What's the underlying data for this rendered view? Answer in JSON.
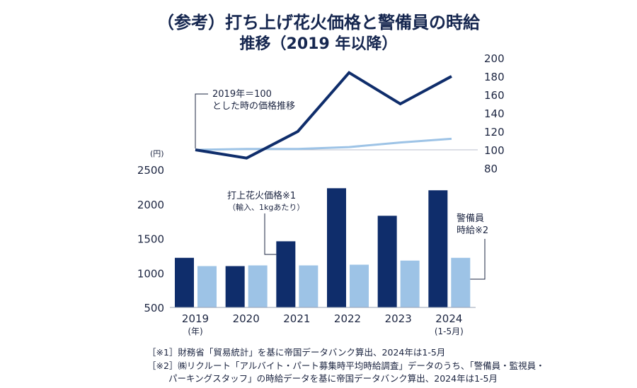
{
  "title": {
    "line1": "（参考）打ち上げ花火価格と警備員の時給",
    "line2": "推移（2019 年以降）"
  },
  "colors": {
    "dark_navy": "#0f2d6b",
    "light_blue": "#9dc3e6",
    "text": "#1b2440"
  },
  "chart_data": [
    {
      "type": "bar",
      "categories": [
        "2019\n(年)",
        "2020",
        "2021",
        "2022",
        "2023",
        "2024\n(1-5月)"
      ],
      "category_labels": [
        {
          "main": "2019",
          "sub": "(年)"
        },
        {
          "main": "2020",
          "sub": ""
        },
        {
          "main": "2021",
          "sub": ""
        },
        {
          "main": "2022",
          "sub": ""
        },
        {
          "main": "2023",
          "sub": ""
        },
        {
          "main": "2024",
          "sub": "(1-5月)"
        }
      ],
      "series": [
        {
          "name": "打上花火価格※1",
          "values": [
            1220,
            1100,
            1460,
            2230,
            1830,
            2200
          ],
          "color": "#0f2d6b"
        },
        {
          "name": "警備員時給※2",
          "values": [
            1100,
            1110,
            1110,
            1120,
            1180,
            1220
          ],
          "color": "#9dc3e6"
        }
      ],
      "ylim": [
        500,
        2500
      ],
      "yticks": [
        500,
        1000,
        1500,
        2000,
        2500
      ],
      "yunit": "(円)",
      "legend": {
        "fireworks_line1": "打上花火価格※1",
        "fireworks_line2": "（輸入、1kgあたり）",
        "guard_line1": "警備員",
        "guard_line2": "時給※2"
      }
    },
    {
      "type": "line",
      "x": [
        "2019",
        "2020",
        "2021",
        "2022",
        "2023",
        "2024"
      ],
      "series": [
        {
          "name": "打上花火価格",
          "values": [
            100,
            91,
            120,
            184,
            150,
            180
          ],
          "color": "#0f2d6b"
        },
        {
          "name": "警備員時給",
          "values": [
            100,
            101,
            101,
            103,
            108,
            112
          ],
          "color": "#9dc3e6"
        }
      ],
      "ylim": [
        80,
        200
      ],
      "yticks": [
        80,
        100,
        120,
        140,
        160,
        180,
        200
      ],
      "baseline": 100,
      "annotation_line1": "2019年＝100",
      "annotation_line2": "とした時の価格推移"
    }
  ],
  "footnotes": {
    "note1": "［※1］財務省「貿易統計」を基に帝国データバンク算出、2024年は1-5月",
    "note2a": "［※2］㈱リクルート「アルバイト・パート募集時平均時給調査」データのうち、「警備員・監視員・",
    "note2b": "パーキングスタッフ」の時給データを基に帝国データバンク算出、2024年は1-5月"
  }
}
